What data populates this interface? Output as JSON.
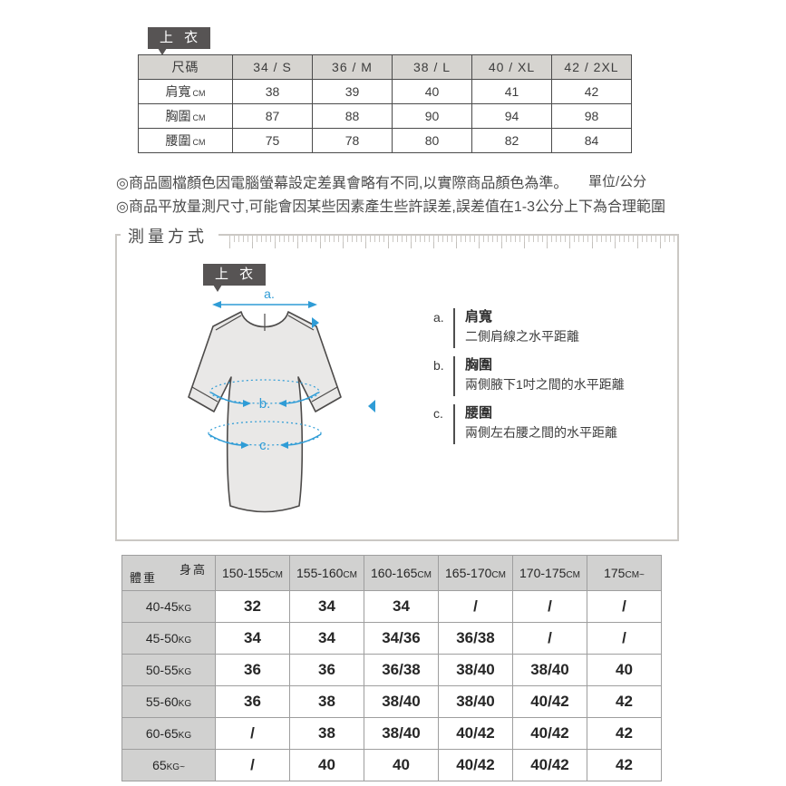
{
  "top_label": "上 衣",
  "size_table": {
    "header": [
      "尺碼",
      "34 / S",
      "36 / M",
      "38 / L",
      "40 / XL",
      "42 / 2XL"
    ],
    "rows": [
      {
        "label": "肩寬",
        "unit": "CM",
        "values": [
          "38",
          "39",
          "40",
          "41",
          "42"
        ]
      },
      {
        "label": "胸圍",
        "unit": "CM",
        "values": [
          "87",
          "88",
          "90",
          "94",
          "98"
        ]
      },
      {
        "label": "腰圍",
        "unit": "CM",
        "values": [
          "75",
          "78",
          "80",
          "82",
          "84"
        ]
      }
    ]
  },
  "notes": {
    "line1": "◎商品圖檔顏色因電腦螢幕設定差異會略有不同,以實際商品顏色為準。",
    "unit_note": "單位/公分",
    "line2": "◎商品平放量測尺寸,可能會因某些因素產生些許誤差,誤差值在1-3公分上下為合理範圍"
  },
  "measurement": {
    "section_title": "測量方式",
    "garment_label": "上 衣",
    "diagram_marks": {
      "a": "a.",
      "b": "b.",
      "c": "c."
    },
    "legend": [
      {
        "letter": "a.",
        "title": "肩寬",
        "desc": "二側肩線之水平距離"
      },
      {
        "letter": "b.",
        "title": "胸圍",
        "desc": "兩側腋下1吋之間的水平距離"
      },
      {
        "letter": "c.",
        "title": "腰圍",
        "desc": "兩側左右腰之間的水平距離"
      }
    ]
  },
  "fit_table": {
    "corner": {
      "top": "身高",
      "bottom": "體重"
    },
    "height_headers": [
      {
        "range": "150-155",
        "unit": "CM"
      },
      {
        "range": "155-160",
        "unit": "CM"
      },
      {
        "range": "160-165",
        "unit": "CM"
      },
      {
        "range": "165-170",
        "unit": "CM"
      },
      {
        "range": "170-175",
        "unit": "CM"
      },
      {
        "range": "175",
        "unit": "CM~"
      }
    ],
    "rows": [
      {
        "weight": "40-45",
        "unit": "KG",
        "values": [
          "32",
          "34",
          "34",
          "/",
          "/",
          "/"
        ]
      },
      {
        "weight": "45-50",
        "unit": "KG",
        "values": [
          "34",
          "34",
          "34/36",
          "36/38",
          "/",
          "/"
        ]
      },
      {
        "weight": "50-55",
        "unit": "KG",
        "values": [
          "36",
          "36",
          "36/38",
          "38/40",
          "38/40",
          "40"
        ]
      },
      {
        "weight": "55-60",
        "unit": "KG",
        "values": [
          "36",
          "38",
          "38/40",
          "38/40",
          "40/42",
          "42"
        ]
      },
      {
        "weight": "60-65",
        "unit": "KG",
        "values": [
          "/",
          "38",
          "38/40",
          "40/42",
          "40/42",
          "42"
        ]
      },
      {
        "weight": "65",
        "unit": "KG~",
        "values": [
          "/",
          "40",
          "40",
          "40/42",
          "40/42",
          "42"
        ]
      }
    ]
  },
  "colors": {
    "accent_blue": "#2f9cd6",
    "tag_bg": "#575454",
    "size_table_header_bg": "#d6d4d0",
    "size_table_border": "#4b4b4b",
    "fit_table_header_bg": "#d1d1d0",
    "fit_table_border": "#9e9e9e",
    "garment_fill": "#e9e8e7",
    "garment_outline": "#4d4b4a",
    "box_border": "#cbc8c4"
  }
}
